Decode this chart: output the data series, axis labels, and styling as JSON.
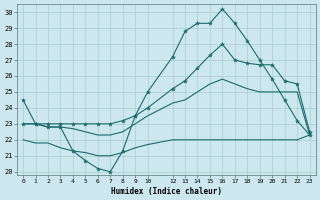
{
  "xlabel": "Humidex (Indice chaleur)",
  "bg_color": "#cce8ee",
  "grid_color": "#aacccc",
  "line_color": "#1a6b6b",
  "xlim": [
    -0.5,
    23.5
  ],
  "ylim": [
    19.8,
    30.5
  ],
  "xticks": [
    0,
    1,
    2,
    3,
    4,
    5,
    6,
    7,
    8,
    9,
    10,
    12,
    13,
    14,
    15,
    16,
    17,
    18,
    19,
    20,
    21,
    22,
    23
  ],
  "yticks": [
    20,
    21,
    22,
    23,
    24,
    25,
    26,
    27,
    28,
    29,
    30
  ],
  "line1_x": [
    0,
    1,
    2,
    3,
    4,
    5,
    6,
    7,
    8,
    9,
    10,
    12,
    13,
    14,
    15,
    16,
    17,
    18,
    19,
    20,
    21,
    22,
    23
  ],
  "line1_y": [
    24.5,
    23.0,
    22.8,
    22.8,
    21.3,
    20.7,
    20.2,
    20.0,
    21.3,
    23.5,
    25.0,
    27.2,
    28.8,
    29.3,
    29.3,
    30.2,
    29.3,
    28.2,
    27.0,
    25.8,
    24.5,
    23.2,
    22.3
  ],
  "line2_x": [
    0,
    1,
    2,
    3,
    4,
    5,
    6,
    7,
    8,
    9,
    10,
    12,
    13,
    14,
    15,
    16,
    17,
    18,
    19,
    20,
    21,
    22,
    23
  ],
  "line2_y": [
    23.0,
    23.0,
    23.0,
    23.0,
    23.0,
    23.0,
    23.0,
    23.0,
    23.2,
    23.5,
    24.0,
    25.2,
    25.7,
    26.5,
    27.3,
    28.0,
    27.0,
    26.8,
    26.7,
    26.7,
    25.7,
    25.5,
    22.5
  ],
  "line3_x": [
    0,
    1,
    2,
    3,
    4,
    5,
    6,
    7,
    8,
    9,
    10,
    12,
    13,
    14,
    15,
    16,
    17,
    18,
    19,
    20,
    21,
    22,
    23
  ],
  "line3_y": [
    23.0,
    23.0,
    22.8,
    22.8,
    22.7,
    22.5,
    22.3,
    22.3,
    22.5,
    23.0,
    23.5,
    24.3,
    24.5,
    25.0,
    25.5,
    25.8,
    25.5,
    25.2,
    25.0,
    25.0,
    25.0,
    25.0,
    22.3
  ],
  "line4_x": [
    0,
    1,
    2,
    3,
    4,
    5,
    6,
    7,
    8,
    9,
    10,
    12,
    13,
    14,
    15,
    16,
    17,
    18,
    19,
    20,
    21,
    22,
    23
  ],
  "line4_y": [
    22.0,
    21.8,
    21.8,
    21.5,
    21.3,
    21.2,
    21.0,
    21.0,
    21.2,
    21.5,
    21.7,
    22.0,
    22.0,
    22.0,
    22.0,
    22.0,
    22.0,
    22.0,
    22.0,
    22.0,
    22.0,
    22.0,
    22.3
  ]
}
